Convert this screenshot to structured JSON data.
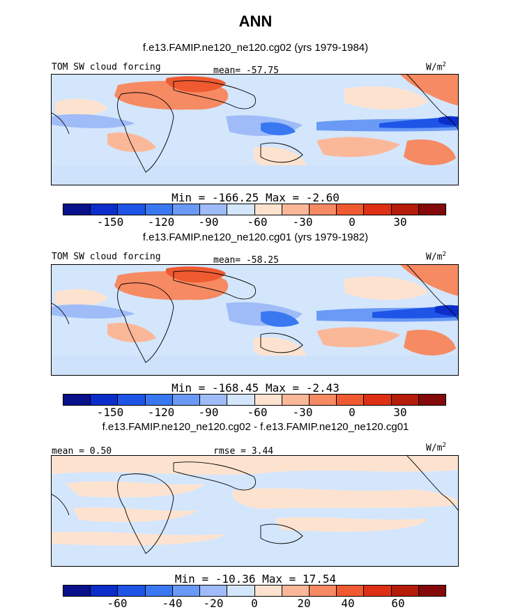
{
  "title": "ANN",
  "palette": [
    "#08108a",
    "#0b2ecb",
    "#1e55e6",
    "#3a78f2",
    "#6a9af6",
    "#9fbcf8",
    "#d4e6fc",
    "#fde3cf",
    "#fbb899",
    "#f68a63",
    "#ef5a30",
    "#de3014",
    "#b51c0a",
    "#83090a"
  ],
  "panels": [
    {
      "subtitle": "f.e13.FAMIP.ne120_ne120.cg02 (yrs 1979-1984)",
      "left_label": "TOM SW cloud forcing",
      "center_label": "mean= -57.75",
      "units_base": "W/m",
      "units_exp": "2",
      "minmax": "Min = -166.25 Max =  -2.60",
      "ticks": [
        "-150",
        "-120",
        "-90",
        "-60",
        "-30",
        "0",
        "30"
      ]
    },
    {
      "subtitle": "f.e13.FAMIP.ne120_ne120.cg01 (yrs 1979-1982)",
      "left_label": "TOM SW cloud forcing",
      "center_label": "mean= -58.25",
      "units_base": "W/m",
      "units_exp": "2",
      "minmax": "Min = -168.45 Max =  -2.43",
      "ticks": [
        "-150",
        "-120",
        "-90",
        "-60",
        "-30",
        "0",
        "30"
      ]
    },
    {
      "subtitle": "f.e13.FAMIP.ne120_ne120.cg02 - f.e13.FAMIP.ne120_ne120.cg01",
      "left_label": "mean =   0.50",
      "center_label": "rmse =    3.44",
      "units_base": "W/m",
      "units_exp": "2",
      "minmax": "Min = -10.36 Max =  17.54",
      "ticks": [
        "-60",
        "-40",
        "-20",
        "0",
        "20",
        "40",
        "60"
      ]
    }
  ]
}
